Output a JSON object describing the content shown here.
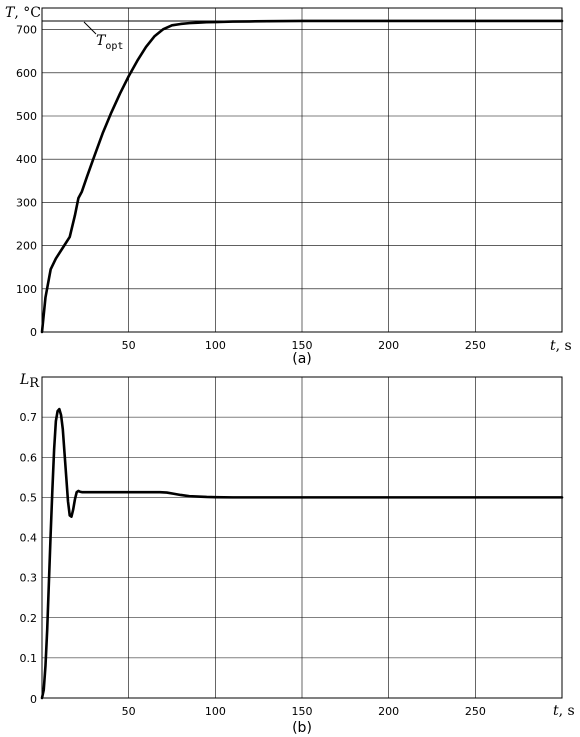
{
  "chart_data": [
    {
      "id": "a",
      "type": "line",
      "panel_label": "(a)",
      "ylabel_var": "T",
      "ylabel_unit": ", °C",
      "xlabel_var": "t",
      "xlabel_unit": ", s",
      "xlim": [
        0,
        300
      ],
      "ylim": [
        0,
        750
      ],
      "xticks": [
        50,
        100,
        150,
        200,
        250
      ],
      "yticks": [
        0,
        100,
        200,
        300,
        400,
        500,
        600,
        700
      ],
      "grid": true,
      "reference_line": {
        "y": 720,
        "label_main": "T",
        "label_sub": "opt"
      },
      "series": [
        {
          "x": [
            0,
            2,
            5,
            8,
            12,
            16,
            19,
            21,
            23,
            26,
            30,
            35,
            40,
            45,
            50,
            55,
            60,
            65,
            70,
            75,
            80,
            85,
            90,
            95,
            100,
            110,
            120,
            130,
            140,
            150,
            170,
            200,
            250,
            300
          ],
          "y": [
            0,
            80,
            145,
            170,
            195,
            220,
            270,
            310,
            325,
            360,
            405,
            460,
            508,
            552,
            592,
            628,
            660,
            685,
            701,
            710,
            713,
            715,
            716,
            717,
            717.5,
            718.5,
            719,
            719.5,
            719.8,
            720,
            720,
            720,
            720,
            720
          ]
        }
      ]
    },
    {
      "id": "b",
      "type": "line",
      "panel_label": "(b)",
      "ylabel_var": "L",
      "ylabel_sub": "R",
      "xlabel_var": "t",
      "xlabel_unit": ", s",
      "xlim": [
        0,
        300
      ],
      "ylim": [
        0,
        0.8
      ],
      "xticks": [
        50,
        100,
        150,
        200,
        250
      ],
      "yticks": [
        0.1,
        0.2,
        0.3,
        0.4,
        0.5,
        0.6,
        0.7
      ],
      "ytick_labels": [
        "0.1",
        "0.2",
        "0.3",
        "0.4",
        "0.5",
        "0.6",
        "0.7"
      ],
      "extra_label": "0",
      "grid": true,
      "series": [
        {
          "x": [
            0,
            1,
            2,
            3,
            4,
            5,
            6,
            7,
            8,
            9,
            10,
            11,
            12,
            13,
            14,
            15,
            16,
            17,
            18,
            19,
            20,
            21,
            22,
            23,
            24,
            25,
            30,
            40,
            50,
            60,
            68,
            72,
            76,
            80,
            85,
            90,
            95,
            100,
            110,
            120,
            150,
            200,
            250,
            300
          ],
          "y": [
            0.0,
            0.02,
            0.08,
            0.17,
            0.29,
            0.41,
            0.52,
            0.62,
            0.69,
            0.715,
            0.72,
            0.705,
            0.67,
            0.61,
            0.55,
            0.49,
            0.455,
            0.452,
            0.47,
            0.495,
            0.513,
            0.516,
            0.514,
            0.513,
            0.513,
            0.513,
            0.513,
            0.513,
            0.513,
            0.513,
            0.513,
            0.512,
            0.509,
            0.506,
            0.503,
            0.502,
            0.501,
            0.5005,
            0.5,
            0.5,
            0.5,
            0.5,
            0.5,
            0.5
          ]
        }
      ]
    }
  ]
}
